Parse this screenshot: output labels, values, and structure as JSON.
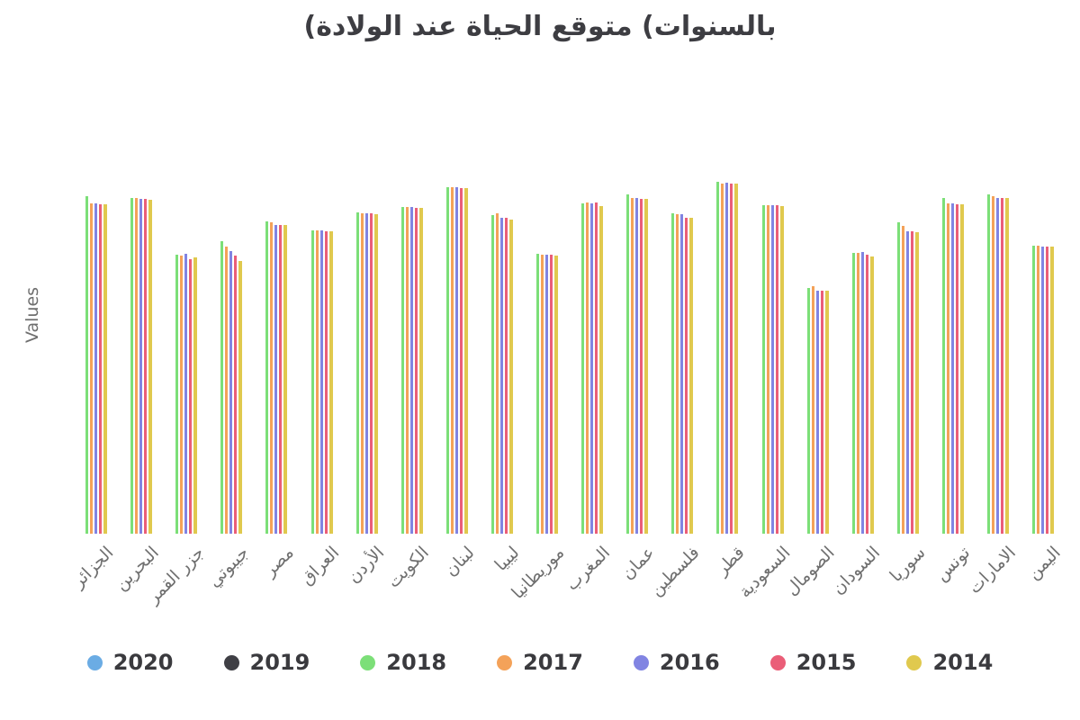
{
  "title": {
    "text": "متوقع الحياة عند الولادة (بالسنوات",
    "display_parts": [
      "(",
      "متوقع الحياة عند الولادة",
      " (",
      "بالسنوات"
    ]
  },
  "y_axis_label": "Values",
  "legend": [
    {
      "label": "2020",
      "color": "#6bace4"
    },
    {
      "label": "2019",
      "color": "#3f3f45"
    },
    {
      "label": "2018",
      "color": "#7cdf78"
    },
    {
      "label": "2017",
      "color": "#f4a259"
    },
    {
      "label": "2016",
      "color": "#8184e2"
    },
    {
      "label": "2015",
      "color": "#ea5e78"
    },
    {
      "label": "2014",
      "color": "#e0c94e"
    }
  ],
  "chart_data": {
    "type": "bar",
    "title": "متوقع الحياة عند الولادة (بالسنوات",
    "xlabel": "",
    "ylabel": "Values",
    "ylim": [
      0,
      88
    ],
    "grid": false,
    "legend_position": "bottom",
    "categories": [
      "الجزائر",
      "البحرين",
      "جزر القمر",
      "جيبوتي",
      "مصر",
      "العراق",
      "الأردن",
      "الكويت",
      "لبنان",
      "ليبيا",
      "موريطانيا",
      "المغرب",
      "عمان",
      "فلسطين",
      "قطر",
      "السعودية",
      "الصومال",
      "السودان",
      "سوريا",
      "تونس",
      "الامارات",
      "اليمن"
    ],
    "series": [
      {
        "name": "2020",
        "color": "#6bace4",
        "values": [
          null,
          null,
          null,
          null,
          null,
          null,
          null,
          null,
          null,
          null,
          null,
          null,
          null,
          null,
          null,
          null,
          null,
          null,
          null,
          null,
          null,
          null
        ]
      },
      {
        "name": "2019",
        "color": "#3f3f45",
        "values": [
          null,
          null,
          null,
          null,
          null,
          null,
          null,
          null,
          null,
          null,
          null,
          null,
          null,
          null,
          null,
          null,
          null,
          null,
          null,
          null,
          null,
          null
        ]
      },
      {
        "name": "2018",
        "color": "#7cdf78",
        "values": [
          77.3,
          76.8,
          63.9,
          67.0,
          71.5,
          69.5,
          73.5,
          74.9,
          79.4,
          73.0,
          64.0,
          75.7,
          77.7,
          73.4,
          80.6,
          75.3,
          56.3,
          64.3,
          71.3,
          76.9,
          77.7,
          66.0
        ]
      },
      {
        "name": "2017",
        "color": "#f4a259",
        "values": [
          75.6,
          76.8,
          63.7,
          65.8,
          71.3,
          69.4,
          73.4,
          74.8,
          79.4,
          73.4,
          63.9,
          75.8,
          76.9,
          73.2,
          80.2,
          75.3,
          56.7,
          64.3,
          70.5,
          75.6,
          77.3,
          65.9
        ]
      },
      {
        "name": "2016",
        "color": "#8184e2",
        "values": [
          75.6,
          76.7,
          64.0,
          64.7,
          70.7,
          69.4,
          73.4,
          74.8,
          79.3,
          72.4,
          63.9,
          75.6,
          76.9,
          73.2,
          80.4,
          75.2,
          55.7,
          64.5,
          69.3,
          75.6,
          76.9,
          65.8
        ]
      },
      {
        "name": "2015",
        "color": "#ea5e78",
        "values": [
          75.5,
          76.6,
          62.9,
          63.7,
          70.7,
          69.3,
          73.3,
          74.7,
          79.2,
          72.4,
          63.8,
          75.8,
          76.7,
          72.4,
          80.2,
          75.2,
          55.7,
          63.9,
          69.3,
          75.5,
          76.9,
          65.8
        ]
      },
      {
        "name": "2014",
        "color": "#e0c94e",
        "values": [
          75.4,
          76.5,
          63.2,
          62.5,
          70.6,
          69.2,
          73.2,
          74.6,
          79.1,
          72.0,
          63.7,
          75.1,
          76.7,
          72.4,
          80.2,
          75.1,
          55.7,
          63.5,
          69.1,
          75.5,
          76.9,
          65.7
        ]
      }
    ]
  }
}
